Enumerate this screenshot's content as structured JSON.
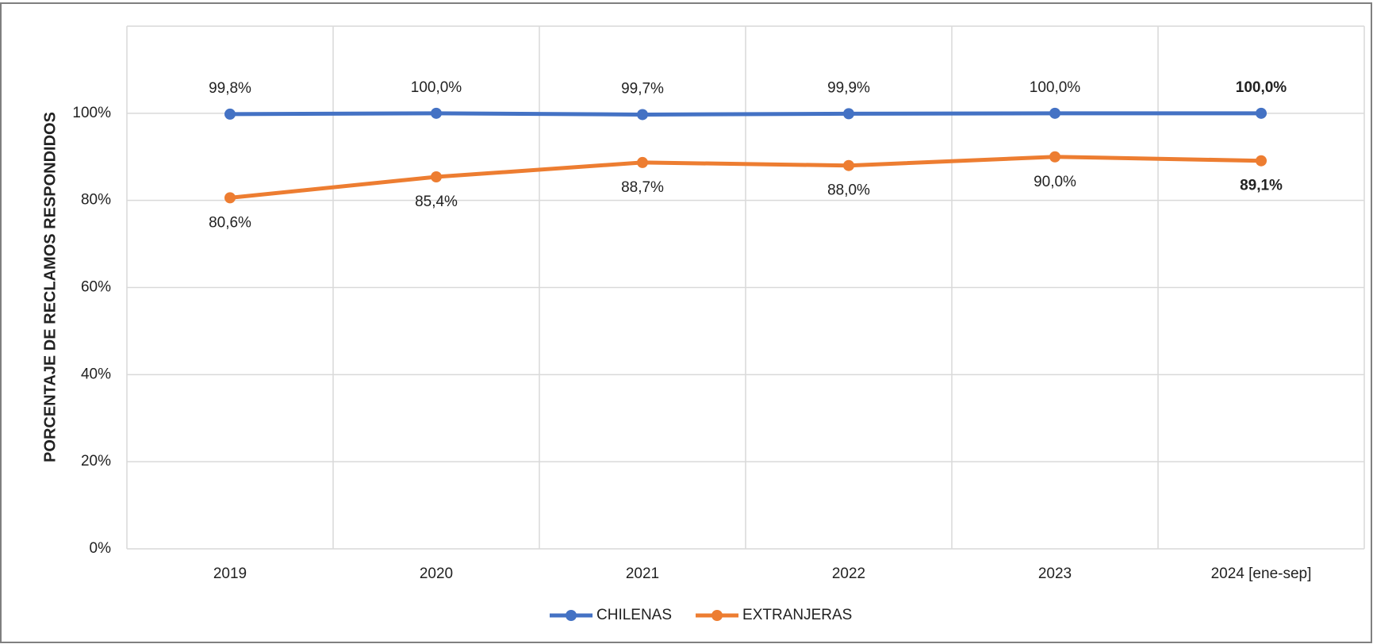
{
  "chart_data": {
    "type": "line",
    "y_axis_label": "PORCENTAJE DE RECLAMOS RESPONDIDOS",
    "categories": [
      "2019",
      "2020",
      "2021",
      "2022",
      "2023",
      "2024 [ene-sep]"
    ],
    "series": [
      {
        "name": "CHILENAS",
        "color": "#4472c4",
        "values": [
          99.8,
          100.0,
          99.7,
          99.9,
          100.0,
          100.0
        ],
        "value_labels": [
          "99,8%",
          "100,0%",
          "99,7%",
          "99,9%",
          "100,0%",
          "100,0%"
        ]
      },
      {
        "name": "EXTRANJERAS",
        "color": "#ed7d31",
        "values": [
          80.6,
          85.4,
          88.7,
          88.0,
          90.0,
          89.1
        ],
        "value_labels": [
          "80,6%",
          "85,4%",
          "88,7%",
          "88,0%",
          "90,0%",
          "89,1%"
        ]
      }
    ],
    "ylim": [
      0,
      120
    ],
    "yticks": [
      {
        "value": 0,
        "label": "0%"
      },
      {
        "value": 20,
        "label": "20%"
      },
      {
        "value": 40,
        "label": "40%"
      },
      {
        "value": 60,
        "label": "60%"
      },
      {
        "value": 80,
        "label": "80%"
      },
      {
        "value": 100,
        "label": "100%"
      }
    ],
    "grid": true,
    "legend": "bottom"
  }
}
